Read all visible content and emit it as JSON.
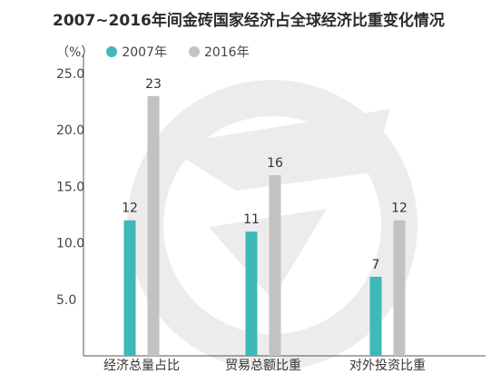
{
  "chart_data": {
    "type": "bar",
    "title": "2007~2016年间金砖国家经济占全球经济比重变化情况",
    "ylabel": "（%）",
    "ylim": [
      0,
      25
    ],
    "yticks": [
      "25.0",
      "20.0",
      "15.0",
      "10.0",
      "5.0"
    ],
    "ytick_values": [
      25,
      20,
      15,
      10,
      5
    ],
    "categories": [
      "经济总量占比",
      "贸易总额比重",
      "对外投资比重"
    ],
    "series": [
      {
        "name": "2007年",
        "color": "#3fb8b9",
        "values": [
          12,
          11,
          7
        ]
      },
      {
        "name": "2016年",
        "color": "#c2c2c4",
        "values": [
          23,
          16,
          12
        ]
      }
    ],
    "grid": false,
    "legend_position": "top-left"
  }
}
